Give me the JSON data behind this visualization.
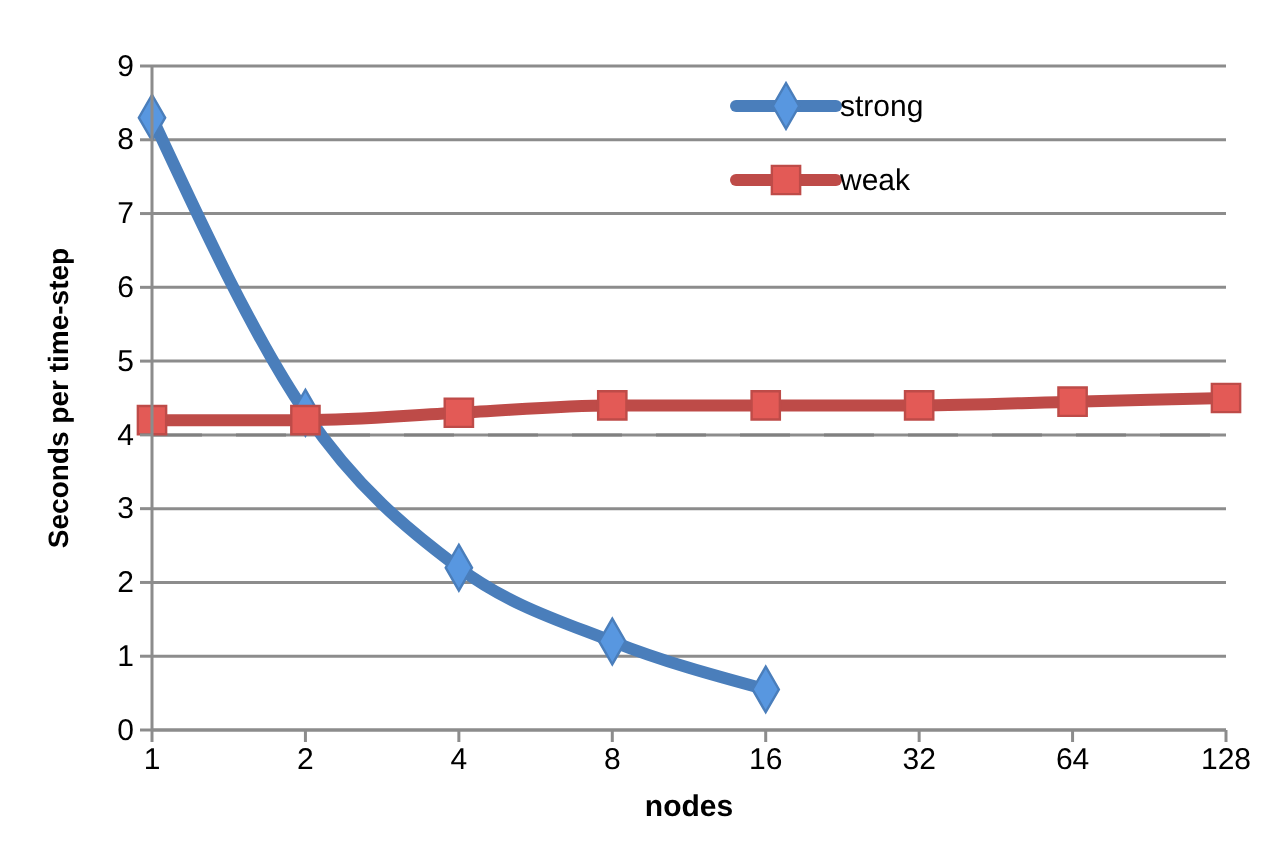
{
  "chart_data": {
    "type": "line",
    "xlabel": "nodes",
    "ylabel": "Seconds per time-step",
    "categories": [
      "1",
      "2",
      "4",
      "8",
      "16",
      "32",
      "64",
      "128"
    ],
    "series": [
      {
        "name": "strong",
        "color": "#4a7ebb",
        "marker": "diamond",
        "values": [
          8.3,
          4.3,
          2.2,
          1.2,
          0.55,
          null,
          null,
          null
        ]
      },
      {
        "name": "weak",
        "color": "#be4b48",
        "marker": "square",
        "values": [
          4.2,
          4.2,
          4.3,
          4.4,
          4.4,
          4.4,
          4.45,
          4.5
        ]
      }
    ],
    "ylim": [
      0,
      9
    ],
    "yticks": [
      0,
      1,
      2,
      3,
      4,
      5,
      6,
      7,
      8,
      9
    ],
    "grid": "y",
    "legend": "top right",
    "ref_lines": [
      {
        "axis": "y",
        "value": 4,
        "line_style": "dashed",
        "color": "#808080"
      }
    ]
  }
}
